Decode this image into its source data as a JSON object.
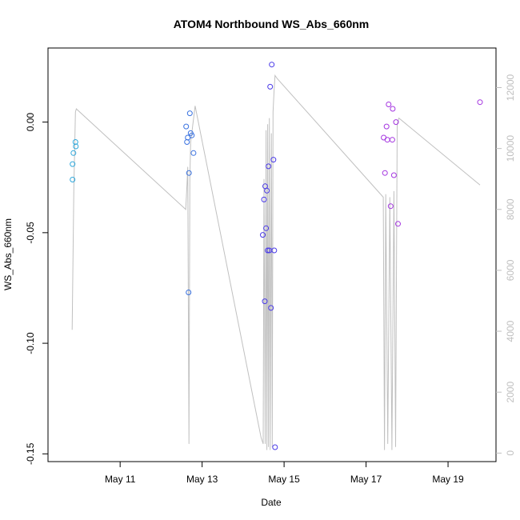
{
  "chart_data": {
    "type": "scatter",
    "title": "ATOM4 Northbound WS_Abs_660nm",
    "xlabel": "Date",
    "ylabel": "WS_Abs_660nm",
    "x_ticks": [
      {
        "value": 11,
        "label": "May 11"
      },
      {
        "value": 13,
        "label": "May 13"
      },
      {
        "value": 15,
        "label": "May 15"
      },
      {
        "value": 17,
        "label": "May 17"
      },
      {
        "value": 19,
        "label": "May 19"
      }
    ],
    "y_ticks": [
      {
        "value": 0.0,
        "label": "0.00"
      },
      {
        "value": -0.05,
        "label": "-0.05"
      },
      {
        "value": -0.1,
        "label": "-0.10"
      },
      {
        "value": -0.15,
        "label": "-0.15"
      }
    ],
    "y2_ticks": [
      {
        "value": 0,
        "label": "0"
      },
      {
        "value": 2000,
        "label": "2000"
      },
      {
        "value": 4000,
        "label": "4000"
      },
      {
        "value": 6000,
        "label": "6000"
      },
      {
        "value": 8000,
        "label": "8000"
      },
      {
        "value": 10000,
        "label": "10000"
      },
      {
        "value": 12000,
        "label": "12000"
      }
    ],
    "xlim": [
      9.24,
      20.17
    ],
    "ylim": [
      -0.1535,
      0.0335
    ],
    "y2lim": [
      -280,
      13300
    ],
    "grid": false,
    "colors": {
      "line": "#c0c0c0",
      "axis": "#000000",
      "right_axis": "#bfbfbf"
    },
    "series": [
      {
        "color": "#2fa8dc",
        "points": [
          {
            "x": 9.84,
            "y": -0.026
          },
          {
            "x": 9.84,
            "y": -0.019
          },
          {
            "x": 9.86,
            "y": -0.014
          },
          {
            "x": 9.91,
            "y": -0.009
          },
          {
            "x": 9.92,
            "y": -0.011
          }
        ]
      },
      {
        "color": "#3a72e0",
        "points": [
          {
            "x": 12.61,
            "y": -0.002
          },
          {
            "x": 12.63,
            "y": -0.009
          },
          {
            "x": 12.65,
            "y": -0.007
          },
          {
            "x": 12.67,
            "y": -0.077
          },
          {
            "x": 12.68,
            "y": -0.023
          },
          {
            "x": 12.7,
            "y": 0.004
          },
          {
            "x": 12.72,
            "y": -0.005
          },
          {
            "x": 12.75,
            "y": -0.006
          },
          {
            "x": 12.79,
            "y": -0.014
          }
        ]
      },
      {
        "color": "#4a3ae8",
        "points": [
          {
            "x": 14.48,
            "y": -0.051
          },
          {
            "x": 14.51,
            "y": -0.035
          },
          {
            "x": 14.53,
            "y": -0.081
          },
          {
            "x": 14.54,
            "y": -0.029
          },
          {
            "x": 14.56,
            "y": -0.048
          },
          {
            "x": 14.58,
            "y": -0.031
          },
          {
            "x": 14.6,
            "y": -0.058
          },
          {
            "x": 14.62,
            "y": -0.02
          },
          {
            "x": 14.64,
            "y": -0.058
          },
          {
            "x": 14.66,
            "y": 0.016
          },
          {
            "x": 14.68,
            "y": -0.084
          },
          {
            "x": 14.7,
            "y": 0.026
          },
          {
            "x": 14.74,
            "y": -0.017
          },
          {
            "x": 14.76,
            "y": -0.058
          },
          {
            "x": 14.78,
            "y": -0.147
          }
        ]
      },
      {
        "color": "#a435e0",
        "points": [
          {
            "x": 17.43,
            "y": -0.007
          },
          {
            "x": 17.46,
            "y": -0.023
          },
          {
            "x": 17.5,
            "y": -0.002
          },
          {
            "x": 17.52,
            "y": -0.008
          },
          {
            "x": 17.55,
            "y": 0.008
          },
          {
            "x": 17.6,
            "y": -0.038
          },
          {
            "x": 17.64,
            "y": -0.008
          },
          {
            "x": 17.65,
            "y": 0.006
          },
          {
            "x": 17.68,
            "y": -0.024
          },
          {
            "x": 17.73,
            "y": 0.0
          },
          {
            "x": 17.78,
            "y": -0.046
          },
          {
            "x": 19.78,
            "y": 0.009
          }
        ]
      }
    ],
    "line_y2": {
      "x": [
        9.83,
        9.87,
        9.91,
        9.93,
        12.6,
        12.63,
        12.65,
        12.68,
        12.7,
        12.72,
        12.83,
        14.44,
        14.49,
        14.51,
        14.54,
        14.56,
        14.58,
        14.6,
        14.62,
        14.64,
        14.66,
        14.69,
        14.71,
        14.73,
        14.76,
        14.78,
        14.83,
        17.42,
        17.45,
        17.48,
        17.53,
        17.58,
        17.63,
        17.68,
        17.72,
        17.76,
        17.8,
        19.78
      ],
      "y": [
        4050,
        8700,
        11200,
        11300,
        8000,
        8800,
        9400,
        300,
        9000,
        10200,
        11400,
        500,
        300,
        9000,
        300,
        10600,
        100,
        10800,
        200,
        11000,
        100,
        10500,
        200,
        11200,
        12000,
        12400,
        12300,
        8400,
        100,
        8500,
        300,
        8400,
        100,
        8600,
        200,
        10800,
        11000,
        8800
      ]
    }
  }
}
